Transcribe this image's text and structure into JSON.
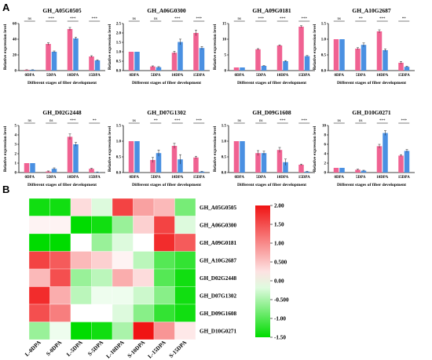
{
  "panels": {
    "a": "A",
    "b": "B"
  },
  "colors": {
    "L": "#f06292",
    "S": "#4a90e2"
  },
  "chart_data": [
    {
      "type": "bar",
      "title": "GH_A05G0505",
      "xlabel": "Different stages of fiber development",
      "ylabel": "Relative expression level",
      "categories": [
        "0DPA",
        "5DPA",
        "10DPA",
        "15DPA"
      ],
      "ylim": [
        0,
        60
      ],
      "yticks": [
        0,
        20,
        40,
        60
      ],
      "series": [
        {
          "values": [
            1,
            34,
            53,
            18
          ]
        },
        {
          "values": [
            1,
            24,
            41,
            13
          ]
        }
      ],
      "errors": [
        [
          0.1,
          1.5,
          2,
          1
        ],
        [
          0.1,
          1,
          1.5,
          0.8
        ]
      ],
      "sig": [
        "ns",
        "***",
        "***",
        "***"
      ]
    },
    {
      "type": "bar",
      "title": "GH_A06G0300",
      "xlabel": "Different stages of fiber development",
      "ylabel": "Relative expression level",
      "categories": [
        "0DPA",
        "5DPA",
        "10DPA",
        "15DPA"
      ],
      "ylim": [
        0,
        2.5
      ],
      "yticks": [
        "0.0",
        "0.5",
        "1.0",
        "1.5",
        "2.0",
        "2.5"
      ],
      "series": [
        {
          "values": [
            1,
            0.22,
            0.95,
            2.0
          ]
        },
        {
          "values": [
            1,
            0.18,
            1.52,
            1.2
          ]
        }
      ],
      "errors": [
        [
          0,
          0.03,
          0.08,
          0.15
        ],
        [
          0,
          0.03,
          0.15,
          0.08
        ]
      ],
      "sig": [
        "ns",
        "ns",
        "***",
        "***"
      ]
    },
    {
      "type": "bar",
      "title": "GH_A09G0181",
      "xlabel": "Different stages of fiber development",
      "ylabel": "Relative expression level",
      "categories": [
        "0DPA",
        "5DPA",
        "10DPA",
        "15DPA"
      ],
      "ylim": [
        0,
        15
      ],
      "yticks": [
        0,
        5,
        10,
        15
      ],
      "series": [
        {
          "values": [
            1,
            6.8,
            8.0,
            14.0
          ]
        },
        {
          "values": [
            1,
            1.5,
            3.0,
            4.6
          ]
        }
      ],
      "errors": [
        [
          0,
          0.2,
          0.2,
          0.3
        ],
        [
          0,
          0.1,
          0.2,
          0.2
        ]
      ],
      "sig": [
        "ns",
        "***",
        "***",
        "***"
      ]
    },
    {
      "type": "bar",
      "title": "GH_A10G2687",
      "xlabel": "Different stages of fiber development",
      "ylabel": "Relative expression level",
      "categories": [
        "0DPA",
        "5DPA",
        "10DPA",
        "15DPA"
      ],
      "ylim": [
        0,
        1.5
      ],
      "yticks": [
        "0.0",
        "0.5",
        "1.0",
        "1.5"
      ],
      "series": [
        {
          "values": [
            1,
            0.7,
            1.25,
            0.25
          ]
        },
        {
          "values": [
            1,
            0.82,
            0.65,
            0.12
          ]
        }
      ],
      "errors": [
        [
          0,
          0.03,
          0.05,
          0.04
        ],
        [
          0,
          0.06,
          0.04,
          0.02
        ]
      ],
      "sig": [
        "ns",
        "**",
        "***",
        "**"
      ]
    },
    {
      "type": "bar",
      "title": "GH_D02G2448",
      "xlabel": "Different stages of fiber development",
      "ylabel": "Relative expression level",
      "categories": [
        "0DPA",
        "5DPA",
        "10DPA",
        "15DPA"
      ],
      "ylim": [
        0,
        5
      ],
      "yticks": [
        0,
        1,
        2,
        3,
        4,
        5
      ],
      "series": [
        {
          "values": [
            1,
            0.12,
            3.8,
            0.4
          ]
        },
        {
          "values": [
            1,
            0.4,
            3.0,
            0.05
          ]
        }
      ],
      "errors": [
        [
          0,
          0.05,
          0.3,
          0.05
        ],
        [
          0,
          0.1,
          0.2,
          0.02
        ]
      ],
      "sig": [
        "ns",
        "ns",
        "***",
        "**"
      ]
    },
    {
      "type": "bar",
      "title": "GH_D07G1302",
      "xlabel": "Different stages of fiber development",
      "ylabel": "Relative expression level",
      "categories": [
        "0DPA",
        "5DPA",
        "10DPA",
        "15DPA"
      ],
      "ylim": [
        0,
        1.5
      ],
      "yticks": [
        "0.0",
        "0.5",
        "1.0",
        "1.5"
      ],
      "series": [
        {
          "values": [
            1,
            0.4,
            0.85,
            0.48
          ]
        },
        {
          "values": [
            1,
            0.62,
            0.42,
            0.03
          ]
        }
      ],
      "errors": [
        [
          0,
          0.08,
          0.08,
          0.04
        ],
        [
          0,
          0.1,
          0.15,
          0.01
        ]
      ],
      "sig": [
        "ns",
        "**",
        "***",
        "***"
      ]
    },
    {
      "type": "bar",
      "title": "GH_D09G1608",
      "xlabel": "Different stages of fiber development",
      "ylabel": "Relative expression level",
      "categories": [
        "0DPA",
        "5DPA",
        "10DPA",
        "15DPA"
      ],
      "ylim": [
        0,
        1.5
      ],
      "yticks": [
        "0.0",
        "0.5",
        "1.0",
        "1.5"
      ],
      "series": [
        {
          "values": [
            1,
            0.62,
            0.72,
            0.25
          ]
        },
        {
          "values": [
            1,
            0.62,
            0.33,
            0.03
          ]
        }
      ],
      "errors": [
        [
          0,
          0.08,
          0.08,
          0.02
        ],
        [
          0,
          0.06,
          0.1,
          0.01
        ]
      ],
      "sig": [
        "ns",
        "ns",
        "***",
        "***"
      ]
    },
    {
      "type": "bar",
      "title": "GH_D10G0271",
      "xlabel": "Different stages of fiber development",
      "ylabel": "Relative expression level",
      "categories": [
        "0DPA",
        "5DPA",
        "10DPA",
        "15DPA"
      ],
      "ylim": [
        0,
        10
      ],
      "yticks": [
        0,
        2,
        4,
        6,
        8,
        10
      ],
      "series": [
        {
          "values": [
            1,
            0.6,
            5.6,
            3.6
          ]
        },
        {
          "values": [
            1,
            0.4,
            8.4,
            4.6
          ]
        }
      ],
      "errors": [
        [
          0,
          0.1,
          0.4,
          0.2
        ],
        [
          0,
          0.1,
          0.5,
          0.3
        ]
      ],
      "sig": [
        "ns",
        "ns",
        "***",
        "***"
      ]
    },
    {
      "type": "heatmap",
      "columns": [
        "L-0DPA",
        "S-0DPA",
        "L-5DPA",
        "S-5DPA",
        "L-10DPA",
        "S-10DPA",
        "L-15DPA",
        "S-15DPA"
      ],
      "rows": [
        "GH_A05G0505",
        "GH_A06G0300",
        "GH_A09G0181",
        "GH_A10G2687",
        "GH_D02G2448",
        "GH_D07G1302",
        "GH_D09G1608",
        "GH_D10G0271"
      ],
      "values": [
        [
          -1.4,
          -1.4,
          0.3,
          -0.2,
          1.6,
          0.8,
          0.6,
          -0.8
        ],
        [
          0.1,
          0.1,
          -1.5,
          -1.4,
          -0.6,
          0.4,
          1.6,
          -0.2
        ],
        [
          -1.5,
          -1.5,
          0.0,
          -0.6,
          -0.2,
          0.0,
          1.8,
          1.4
        ],
        [
          1.6,
          1.4,
          0.6,
          0.4,
          0.1,
          -0.4,
          -1.0,
          -1.2
        ],
        [
          0.6,
          1.5,
          -0.6,
          -0.4,
          0.7,
          0.3,
          -1.0,
          -1.4
        ],
        [
          1.8,
          0.7,
          -0.4,
          -0.1,
          -0.1,
          -0.3,
          -0.7,
          -1.4
        ],
        [
          1.5,
          1.1,
          0.0,
          0.0,
          -0.2,
          -0.7,
          -1.2,
          -1.4
        ],
        [
          -0.6,
          -0.1,
          -1.5,
          -1.4,
          -0.5,
          2.0,
          0.9,
          0.2
        ]
      ],
      "scale": {
        "min": -1.5,
        "max": 2.0,
        "ticks": [
          "2.00",
          "1.50",
          "1.00",
          "0.500",
          "0.00",
          "-0.500",
          "-1.00",
          "-1.50"
        ]
      }
    }
  ]
}
